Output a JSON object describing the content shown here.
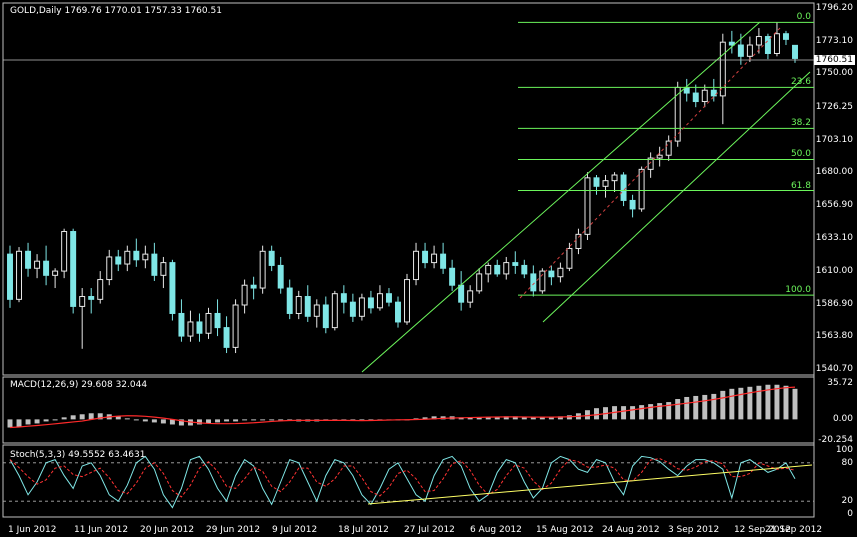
{
  "main": {
    "title": "GOLD,Daily  1769.76 1770.01 1757.33 1760.51",
    "current_price": "1760.51",
    "price_ticks": [
      "1796.20",
      "1773.10",
      "1750.00",
      "1726.25",
      "1703.10",
      "1680.00",
      "1656.90",
      "1633.10",
      "1610.00",
      "1586.90",
      "1563.80",
      "1540.70"
    ],
    "fib_levels": [
      "0.0",
      "23.6",
      "38.2",
      "50.0",
      "61.8",
      "100.0"
    ]
  },
  "macd": {
    "title": "MACD(12,26,9) 29.608 32.044",
    "ticks": [
      "35.72",
      "0.00",
      "-20.254"
    ]
  },
  "stoch": {
    "title": "Stoch(5,3,3) 49.5552 63.4631",
    "ticks": [
      "100",
      "80",
      "20",
      "0"
    ]
  },
  "dates": [
    "1 Jun 2012",
    "11 Jun 2012",
    "20 Jun 2012",
    "29 Jun 2012",
    "9 Jul 2012",
    "18 Jul 2012",
    "27 Jul 2012",
    "6 Aug 2012",
    "15 Aug 2012",
    "24 Aug 2012",
    "3 Sep 2012",
    "12 Sep 2012",
    "21 Sep 2012"
  ],
  "colors": {
    "background": "#000000",
    "bull": "#e8e8e8",
    "bull_body": "#000000",
    "bear_body": "#7fe6e6",
    "fib": "#6cf55c",
    "channel": "#6cf55c",
    "macd_bar": "#c0c0c0",
    "signal": "#ff2a2a",
    "stoch_main": "#7fe6e6",
    "stoch_signal": "#ff3333",
    "trendline": "#ffff66",
    "grid": "#b0b0b0"
  },
  "chart_data": {
    "type": "candlestick",
    "symbol": "GOLD",
    "timeframe": "Daily",
    "ylim": [
      1540.7,
      1796.2
    ],
    "candles": [
      [
        1622,
        1628,
        1584,
        1590
      ],
      [
        1590,
        1627,
        1588,
        1624
      ],
      [
        1624,
        1630,
        1606,
        1612
      ],
      [
        1612,
        1622,
        1605,
        1617
      ],
      [
        1617,
        1628,
        1600,
        1607
      ],
      [
        1607,
        1612,
        1598,
        1610
      ],
      [
        1610,
        1640,
        1605,
        1638
      ],
      [
        1638,
        1640,
        1580,
        1585
      ],
      [
        1585,
        1598,
        1555,
        1592
      ],
      [
        1592,
        1598,
        1580,
        1590
      ],
      [
        1590,
        1610,
        1587,
        1604
      ],
      [
        1604,
        1625,
        1600,
        1620
      ],
      [
        1620,
        1625,
        1610,
        1615
      ],
      [
        1615,
        1628,
        1610,
        1624
      ],
      [
        1624,
        1633,
        1613,
        1618
      ],
      [
        1618,
        1628,
        1612,
        1622
      ],
      [
        1622,
        1630,
        1603,
        1607
      ],
      [
        1607,
        1620,
        1598,
        1616
      ],
      [
        1616,
        1618,
        1575,
        1580
      ],
      [
        1580,
        1590,
        1560,
        1564
      ],
      [
        1564,
        1582,
        1560,
        1574
      ],
      [
        1574,
        1580,
        1560,
        1566
      ],
      [
        1566,
        1584,
        1562,
        1580
      ],
      [
        1580,
        1590,
        1564,
        1570
      ],
      [
        1570,
        1578,
        1552,
        1556
      ],
      [
        1556,
        1590,
        1552,
        1586
      ],
      [
        1586,
        1604,
        1580,
        1600
      ],
      [
        1600,
        1606,
        1590,
        1598
      ],
      [
        1598,
        1628,
        1594,
        1624
      ],
      [
        1624,
        1628,
        1610,
        1614
      ],
      [
        1614,
        1620,
        1594,
        1598
      ],
      [
        1598,
        1604,
        1576,
        1580
      ],
      [
        1580,
        1596,
        1576,
        1592
      ],
      [
        1592,
        1600,
        1574,
        1578
      ],
      [
        1578,
        1590,
        1570,
        1586
      ],
      [
        1586,
        1592,
        1566,
        1570
      ],
      [
        1570,
        1596,
        1568,
        1594
      ],
      [
        1594,
        1600,
        1580,
        1588
      ],
      [
        1588,
        1594,
        1574,
        1578
      ],
      [
        1578,
        1594,
        1575,
        1591
      ],
      [
        1591,
        1596,
        1580,
        1584
      ],
      [
        1584,
        1600,
        1582,
        1594
      ],
      [
        1594,
        1598,
        1585,
        1588
      ],
      [
        1588,
        1592,
        1570,
        1574
      ],
      [
        1574,
        1608,
        1572,
        1604
      ],
      [
        1604,
        1630,
        1600,
        1624
      ],
      [
        1624,
        1630,
        1612,
        1616
      ],
      [
        1616,
        1628,
        1612,
        1622
      ],
      [
        1622,
        1630,
        1608,
        1612
      ],
      [
        1612,
        1618,
        1596,
        1600
      ],
      [
        1600,
        1610,
        1582,
        1588
      ],
      [
        1588,
        1600,
        1584,
        1596
      ],
      [
        1596,
        1612,
        1594,
        1608
      ],
      [
        1608,
        1616,
        1602,
        1614
      ],
      [
        1614,
        1618,
        1606,
        1608
      ],
      [
        1608,
        1620,
        1604,
        1616
      ],
      [
        1616,
        1624,
        1608,
        1614
      ],
      [
        1614,
        1618,
        1605,
        1608
      ],
      [
        1608,
        1614,
        1592,
        1596
      ],
      [
        1596,
        1612,
        1594,
        1610
      ],
      [
        1610,
        1614,
        1600,
        1606
      ],
      [
        1606,
        1616,
        1602,
        1612
      ],
      [
        1612,
        1630,
        1610,
        1626
      ],
      [
        1626,
        1640,
        1622,
        1636
      ],
      [
        1636,
        1680,
        1632,
        1676
      ],
      [
        1676,
        1678,
        1664,
        1670
      ],
      [
        1670,
        1678,
        1662,
        1674
      ],
      [
        1674,
        1680,
        1666,
        1678
      ],
      [
        1678,
        1680,
        1656,
        1660
      ],
      [
        1660,
        1664,
        1648,
        1654
      ],
      [
        1654,
        1684,
        1652,
        1682
      ],
      [
        1682,
        1694,
        1676,
        1690
      ],
      [
        1690,
        1698,
        1684,
        1692
      ],
      [
        1692,
        1706,
        1688,
        1702
      ],
      [
        1702,
        1744,
        1698,
        1740
      ],
      [
        1740,
        1746,
        1730,
        1736
      ],
      [
        1736,
        1742,
        1726,
        1730
      ],
      [
        1730,
        1742,
        1726,
        1738
      ],
      [
        1738,
        1746,
        1730,
        1734
      ],
      [
        1734,
        1778,
        1714,
        1772
      ],
      [
        1772,
        1780,
        1764,
        1770
      ],
      [
        1770,
        1778,
        1756,
        1762
      ],
      [
        1762,
        1776,
        1758,
        1770
      ],
      [
        1770,
        1782,
        1764,
        1776
      ],
      [
        1776,
        1778,
        1760,
        1764
      ],
      [
        1764,
        1786,
        1762,
        1778
      ],
      [
        1778,
        1780,
        1770,
        1774
      ],
      [
        1769.76,
        1770.01,
        1757.33,
        1760.51
      ]
    ]
  }
}
